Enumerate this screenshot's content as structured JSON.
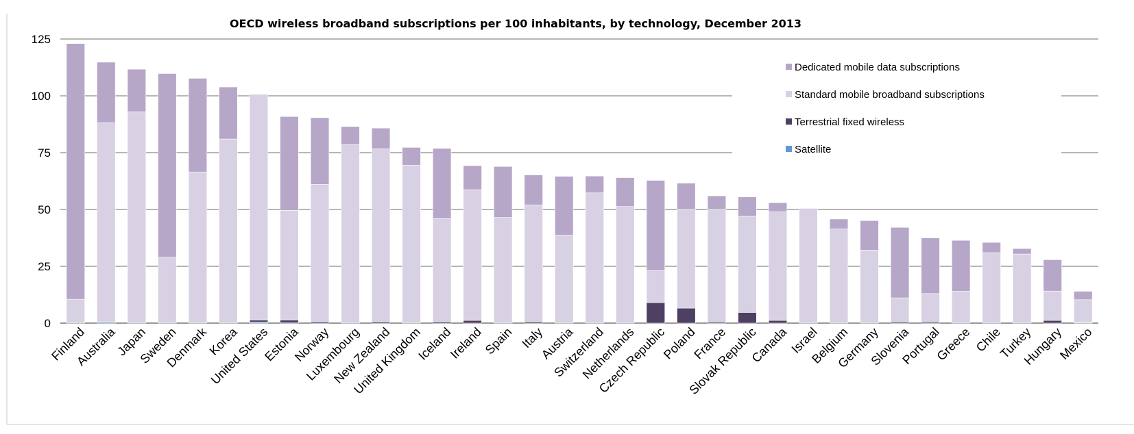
{
  "chart_data": {
    "type": "bar",
    "stacked": true,
    "title": "OECD wireless broadband subscriptions per 100 inhabitants, by technology, December 2013",
    "xlabel": "",
    "ylabel": "",
    "ylim": [
      0,
      125
    ],
    "yticks": [
      0,
      25,
      50,
      75,
      100,
      125
    ],
    "grid": true,
    "legend_position": "top-right",
    "categories": [
      "Finland",
      "Australia",
      "Japan",
      "Sweden",
      "Denmark",
      "Korea",
      "United States",
      "Estonia",
      "Norway",
      "Luxembourg",
      "New Zealand",
      "United Kingdom",
      "Iceland",
      "Ireland",
      "Spain",
      "Italy",
      "Austria",
      "Switzerland",
      "Netherlands",
      "Czech Republic",
      "Poland",
      "France",
      "Slovak Republic",
      "Canada",
      "Israel",
      "Belgium",
      "Germany",
      "Slovenia",
      "Portugal",
      "Greece",
      "Chile",
      "Turkey",
      "Hungary",
      "Mexico"
    ],
    "series": [
      {
        "name": "Satellite",
        "color": "#5b9bd5",
        "values": [
          0,
          0.5,
          0,
          0,
          0,
          0,
          0.5,
          0.1,
          0,
          0,
          0,
          0,
          0,
          0,
          0,
          0,
          0,
          0,
          0,
          0,
          0,
          0,
          0,
          0,
          0,
          0,
          0,
          0,
          0,
          0,
          0,
          0,
          0,
          0.3
        ]
      },
      {
        "name": "Terrestrial fixed wireless",
        "color": "#4f3f63",
        "values": [
          0,
          0.1,
          0,
          0,
          0,
          0,
          0.8,
          1.2,
          0.6,
          0,
          0.6,
          0,
          0.6,
          1.2,
          0,
          0.6,
          0,
          0,
          0,
          9,
          6.6,
          0.5,
          4.7,
          1.2,
          0,
          0,
          0,
          0.5,
          0.5,
          0,
          0,
          0,
          1.2,
          0.2
        ]
      },
      {
        "name": "Standard mobile broadband subscriptions",
        "color": "#d8d0e3",
        "values": [
          10.5,
          87.6,
          93,
          29,
          66.5,
          81,
          99.4,
          48.3,
          60.4,
          78.5,
          76.1,
          69.5,
          45.4,
          57.5,
          46.5,
          51.4,
          38.7,
          57.3,
          51.3,
          14.1,
          43.4,
          49.5,
          42.3,
          47.8,
          50.5,
          41.5,
          32.1,
          10.6,
          12.5,
          14,
          31,
          30.4,
          12.9,
          9.8
        ]
      },
      {
        "name": "Dedicated mobile data subscriptions",
        "color": "#b6a6c8",
        "values": [
          112.5,
          26.6,
          18.7,
          80.8,
          41.2,
          22.9,
          0,
          41.3,
          29.4,
          8,
          9.1,
          7.8,
          30.9,
          10.6,
          22.4,
          13.2,
          25.9,
          7.4,
          12.7,
          39.7,
          11.6,
          6,
          8.5,
          4,
          0,
          4.3,
          13,
          31,
          24.5,
          22.4,
          4.5,
          2.4,
          13.8,
          3.7
        ]
      }
    ],
    "legend_order": [
      "Dedicated mobile data subscriptions",
      "Standard mobile broadband subscriptions",
      "Terrestrial fixed wireless",
      "Satellite"
    ]
  }
}
